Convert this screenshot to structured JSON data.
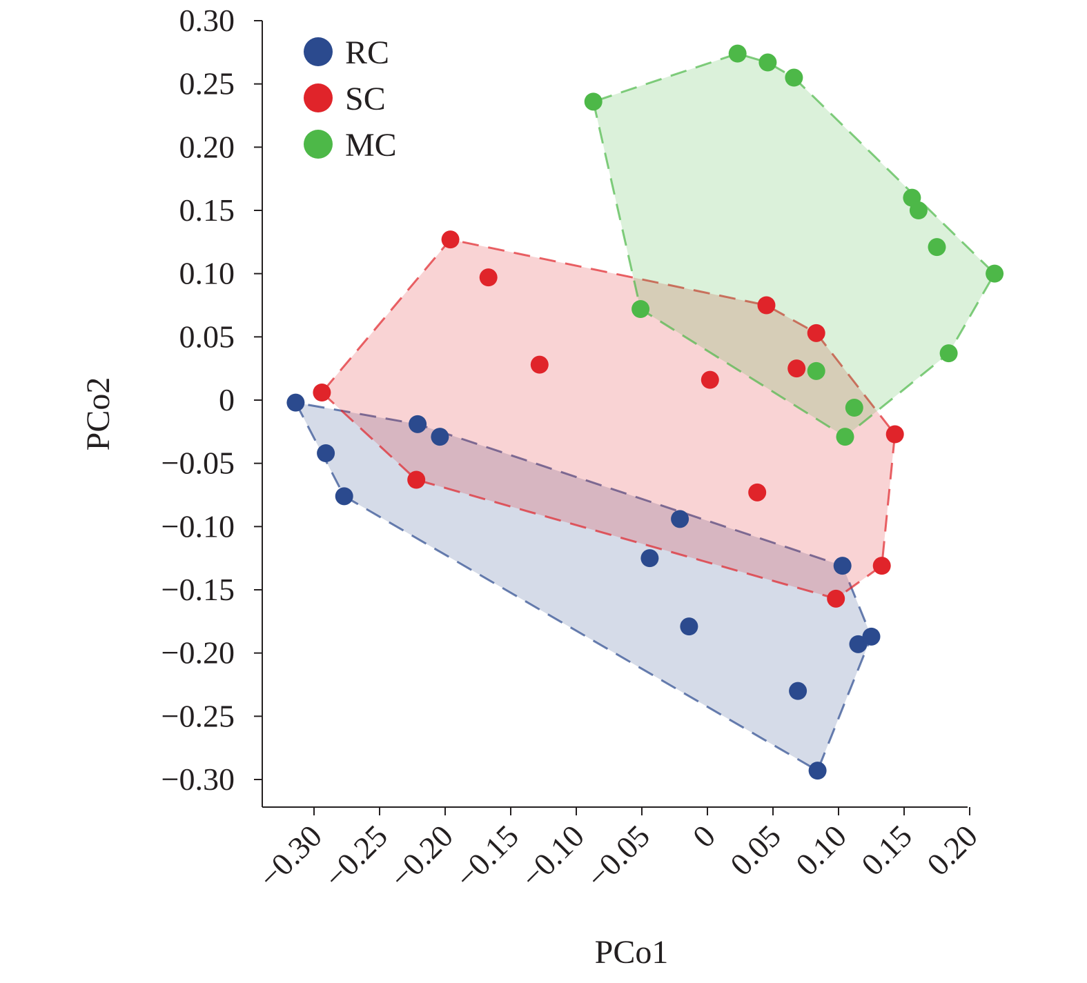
{
  "chart_data": {
    "type": "scatter",
    "title": "",
    "xlabel": "PCo1",
    "ylabel": "PCo2",
    "xlim": [
      -0.34,
      0.2
    ],
    "ylim": [
      -0.32,
      0.3
    ],
    "x_ticks": [
      -0.3,
      -0.25,
      -0.2,
      -0.15,
      -0.1,
      -0.05,
      0,
      0.05,
      0.1,
      0.15,
      0.2
    ],
    "x_tick_labels": [
      "−0.30",
      "−0.25",
      "−0.20",
      "−0.15",
      "−0.10",
      "−0.05",
      "0",
      "0.05",
      "0.10",
      "0.15",
      "0.20"
    ],
    "y_ticks": [
      0.3,
      0.25,
      0.2,
      0.15,
      0.1,
      0.05,
      0,
      -0.05,
      -0.1,
      -0.15,
      -0.2,
      -0.25,
      -0.3
    ],
    "y_tick_labels": [
      "0.30",
      "0.25",
      "0.20",
      "0.15",
      "0.10",
      "0.05",
      "0",
      "−0.05",
      "−0.10",
      "−0.15",
      "−0.20",
      "−0.25",
      "−0.30"
    ],
    "grid": false,
    "legend_position": "top-left",
    "series": [
      {
        "name": "RC",
        "color": "#2b4a8e",
        "fill": "#2b4a8e",
        "points": [
          [
            -0.314,
            -0.002
          ],
          [
            -0.291,
            -0.042
          ],
          [
            -0.277,
            -0.076
          ],
          [
            -0.221,
            -0.019
          ],
          [
            -0.204,
            -0.029
          ],
          [
            -0.021,
            -0.094
          ],
          [
            -0.044,
            -0.125
          ],
          [
            -0.014,
            -0.179
          ],
          [
            0.103,
            -0.131
          ],
          [
            0.115,
            -0.193
          ],
          [
            0.125,
            -0.187
          ],
          [
            0.069,
            -0.23
          ],
          [
            0.084,
            -0.293
          ]
        ]
      },
      {
        "name": "SC",
        "color": "#e0242a",
        "fill": "#e0242a",
        "points": [
          [
            -0.294,
            0.006
          ],
          [
            -0.196,
            0.127
          ],
          [
            -0.167,
            0.097
          ],
          [
            -0.128,
            0.028
          ],
          [
            0.002,
            0.016
          ],
          [
            0.045,
            0.075
          ],
          [
            0.083,
            0.053
          ],
          [
            0.068,
            0.025
          ],
          [
            0.143,
            -0.027
          ],
          [
            0.038,
            -0.073
          ],
          [
            -0.222,
            -0.063
          ],
          [
            0.133,
            -0.131
          ],
          [
            0.098,
            -0.157
          ]
        ]
      },
      {
        "name": "MC",
        "color": "#4db848",
        "fill": "#4db848",
        "points": [
          [
            -0.087,
            0.236
          ],
          [
            0.023,
            0.274
          ],
          [
            0.046,
            0.267
          ],
          [
            0.066,
            0.255
          ],
          [
            0.156,
            0.16
          ],
          [
            0.161,
            0.15
          ],
          [
            0.175,
            0.121
          ],
          [
            0.219,
            0.1
          ],
          [
            0.184,
            0.037
          ],
          [
            -0.051,
            0.072
          ],
          [
            0.083,
            0.023
          ],
          [
            0.112,
            -0.006
          ],
          [
            0.105,
            -0.029
          ]
        ]
      }
    ]
  }
}
